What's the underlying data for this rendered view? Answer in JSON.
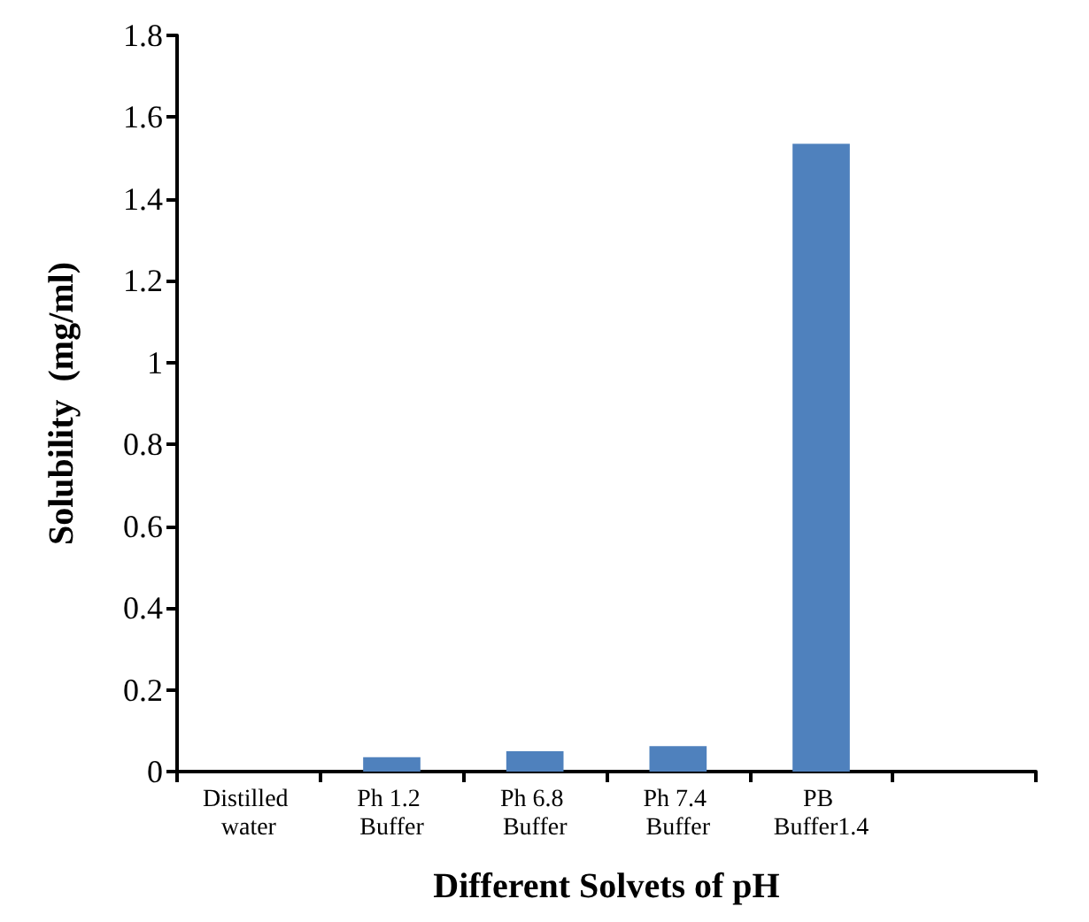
{
  "chart_data": {
    "type": "bar",
    "xlabel": "Different Solvets of pH",
    "ylabel": "Solubility  (mg/ml)",
    "categories": [
      "Distilled water",
      "Ph 1.2 Buffer",
      "Ph 6.8 Buffer",
      "Ph 7.4 Buffer",
      "PB Buffer1.4",
      null
    ],
    "values": [
      0,
      0.035,
      0.05,
      0.062,
      1.535,
      null
    ],
    "color": "#4f81bd",
    "ylim": [
      0,
      1.8
    ],
    "yticks": [
      0,
      0.2,
      0.4,
      0.6,
      0.8,
      1,
      1.2,
      1.4,
      1.6,
      1.8
    ],
    "grid": false
  }
}
